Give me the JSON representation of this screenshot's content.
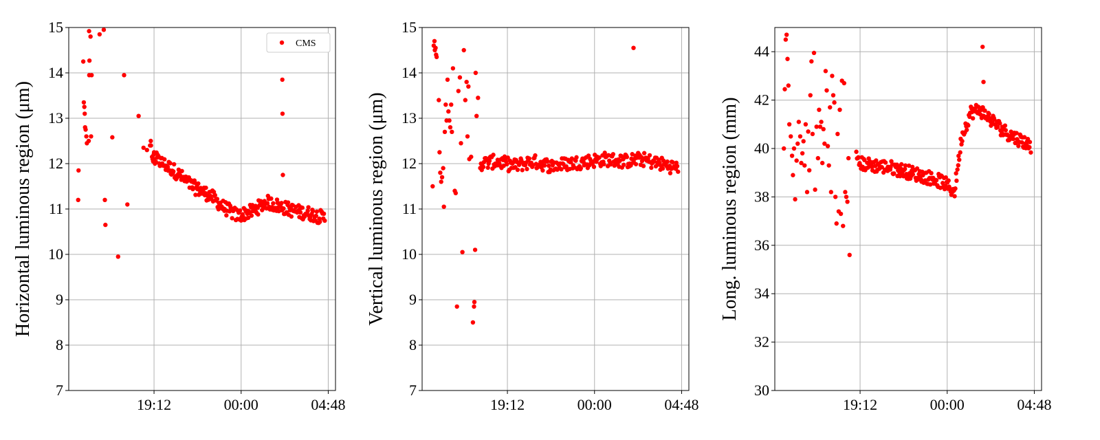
{
  "colors": {
    "points": "#ff0000",
    "grid": "#b0b0b0",
    "axes": "#000000"
  },
  "chart_data": [
    {
      "type": "scatter",
      "xlabel": "",
      "ylabel": "Horizontal luminous region (μm)",
      "ylim": [
        7,
        15
      ],
      "yticks": [
        "7",
        "8",
        "9",
        "10",
        "11",
        "12",
        "13",
        "14",
        "15"
      ],
      "xlim": [
        14.5,
        29.2
      ],
      "xtick_values": [
        19.2,
        24.0,
        28.8
      ],
      "xticks": [
        "19:12",
        "00:00",
        "04:48"
      ],
      "grid": true,
      "legend": {
        "entries": [
          "CMS"
        ],
        "placement": "top-right"
      },
      "series": [
        {
          "name": "CMS",
          "x": [
            15.02,
            15.04,
            15.3,
            15.33,
            15.36,
            15.38,
            15.4,
            15.43,
            15.47,
            15.5,
            15.6,
            15.62,
            15.63,
            15.64,
            15.7,
            15.73,
            15.76,
            16.2,
            16.43,
            16.49,
            16.52,
            16.9,
            17.22,
            17.55,
            17.73,
            18.35,
            18.62,
            18.81,
            18.98,
            19.02,
            19.03,
            19.09,
            19.12,
            19.15,
            19.18,
            19.2,
            19.22,
            19.25
          ],
          "y": [
            11.2,
            11.85,
            14.25,
            13.35,
            13.25,
            13.1,
            12.8,
            12.75,
            12.6,
            12.45,
            12.5,
            14.92,
            13.95,
            14.27,
            14.8,
            12.6,
            13.95,
            14.85,
            14.95,
            11.2,
            10.65,
            12.58,
            9.95,
            13.95,
            11.1,
            13.05,
            12.35,
            12.3,
            12.4,
            12.5,
            12.4,
            12.15,
            12.1,
            12.05,
            12.2,
            12.25,
            12.1,
            12.0
          ]
        }
      ],
      "trend": [
        {
          "x": 19.3,
          "y": 12.1
        },
        {
          "x": 20.3,
          "y": 11.85
        },
        {
          "x": 21.3,
          "y": 11.5
        },
        {
          "x": 22.3,
          "y": 11.3
        },
        {
          "x": 23.0,
          "y": 11.05
        },
        {
          "x": 23.8,
          "y": 10.85
        },
        {
          "x": 24.6,
          "y": 10.95
        },
        {
          "x": 25.4,
          "y": 11.15
        },
        {
          "x": 26.2,
          "y": 11.05
        },
        {
          "x": 27.0,
          "y": 10.95
        },
        {
          "x": 27.8,
          "y": 10.9
        },
        {
          "x": 28.6,
          "y": 10.8
        }
      ],
      "trend_extra": [
        {
          "x": 26.27,
          "y": 13.85
        },
        {
          "x": 26.28,
          "y": 13.1
        },
        {
          "x": 26.3,
          "y": 11.75
        }
      ]
    },
    {
      "type": "scatter",
      "xlabel": "",
      "ylabel": "Vertical luminous region (μm)",
      "ylim": [
        7,
        15
      ],
      "yticks": [
        "7",
        "8",
        "9",
        "10",
        "11",
        "12",
        "13",
        "14",
        "15"
      ],
      "xlim": [
        14.5,
        29.2
      ],
      "xtick_values": [
        19.2,
        24.0,
        28.8
      ],
      "xticks": [
        "19:12",
        "00:00",
        "04:48"
      ],
      "grid": true,
      "series": [
        {
          "name": "CMS",
          "x": [
            15.08,
            15.14,
            15.18,
            15.2,
            15.24,
            15.27,
            15.3,
            15.42,
            15.46,
            15.5,
            15.55,
            15.6,
            15.66,
            15.7,
            15.75,
            15.8,
            15.85,
            15.9,
            15.95,
            16.0,
            16.05,
            16.1,
            16.14,
            16.2,
            16.3,
            16.35,
            16.42,
            16.5,
            16.58,
            16.64,
            16.72,
            16.8,
            16.88,
            16.95,
            17.0,
            17.05,
            17.1,
            17.2,
            17.3,
            17.36,
            17.38,
            17.42,
            17.45,
            17.5,
            17.58
          ],
          "y": [
            11.5,
            14.6,
            14.7,
            14.5,
            14.55,
            14.4,
            14.35,
            13.4,
            12.25,
            11.8,
            11.6,
            11.7,
            11.9,
            11.05,
            12.7,
            13.3,
            12.95,
            13.85,
            13.15,
            12.95,
            12.8,
            13.3,
            12.7,
            14.1,
            11.4,
            11.35,
            8.85,
            13.6,
            13.9,
            12.45,
            10.05,
            14.5,
            13.4,
            13.8,
            12.6,
            13.7,
            12.1,
            12.15,
            8.5,
            8.85,
            8.95,
            10.1,
            14.0,
            13.05,
            13.45
          ]
        }
      ],
      "trend": [
        {
          "x": 17.7,
          "y": 12.0
        },
        {
          "x": 18.6,
          "y": 12.05
        },
        {
          "x": 19.6,
          "y": 11.95
        },
        {
          "x": 20.6,
          "y": 12.05
        },
        {
          "x": 21.6,
          "y": 11.95
        },
        {
          "x": 22.6,
          "y": 12.0
        },
        {
          "x": 23.6,
          "y": 12.05
        },
        {
          "x": 24.6,
          "y": 12.1
        },
        {
          "x": 25.6,
          "y": 12.05
        },
        {
          "x": 26.6,
          "y": 12.1
        },
        {
          "x": 27.6,
          "y": 12.0
        },
        {
          "x": 28.6,
          "y": 11.9
        }
      ],
      "trend_extra": [
        {
          "x": 26.15,
          "y": 14.55
        }
      ]
    },
    {
      "type": "scatter",
      "xlabel": "",
      "ylabel": "Long. luminous region (mm)",
      "ylim": [
        30,
        45
      ],
      "yticks": [
        "30",
        "32",
        "34",
        "36",
        "38",
        "40",
        "42",
        "44"
      ],
      "ytick_values": [
        30,
        32,
        34,
        36,
        38,
        40,
        42,
        44
      ],
      "xlim": [
        14.5,
        29.2
      ],
      "xtick_values": [
        19.2,
        24.0,
        28.8
      ],
      "xticks": [
        "19:12",
        "00:00",
        "04:48"
      ],
      "grid": true,
      "series": [
        {
          "name": "CMS",
          "x": [
            15.0,
            15.05,
            15.1,
            15.15,
            15.2,
            15.25,
            15.3,
            15.38,
            15.45,
            15.5,
            15.56,
            15.62,
            15.7,
            15.76,
            15.82,
            15.9,
            15.96,
            16.02,
            16.08,
            16.14,
            16.2,
            16.28,
            16.34,
            16.4,
            16.46,
            16.52,
            16.58,
            16.66,
            16.72,
            16.8,
            16.88,
            16.94,
            17.0,
            17.06,
            17.12,
            17.18,
            17.24,
            17.3,
            17.36,
            17.42,
            17.48,
            17.54,
            17.6,
            17.66,
            17.72,
            17.78,
            17.84,
            17.9,
            17.96,
            18.02,
            18.08,
            18.14,
            18.2,
            18.26,
            18.32,
            18.38,
            18.44,
            18.5,
            18.56,
            18.62
          ],
          "y": [
            40.0,
            42.45,
            44.5,
            44.7,
            43.7,
            42.6,
            41.0,
            40.5,
            39.7,
            38.9,
            40.0,
            37.9,
            39.5,
            40.2,
            41.1,
            40.5,
            39.4,
            39.8,
            40.3,
            39.3,
            41.0,
            38.2,
            40.7,
            39.1,
            42.2,
            43.6,
            40.6,
            43.95,
            38.3,
            40.9,
            39.6,
            41.6,
            40.9,
            41.1,
            39.4,
            40.8,
            40.2,
            43.2,
            42.4,
            40.1,
            39.3,
            41.7,
            38.2,
            43.0,
            42.2,
            41.9,
            38.0,
            36.9,
            40.6,
            37.4,
            41.6,
            37.3,
            42.8,
            36.8,
            42.7,
            38.2,
            38.0,
            37.8,
            39.6,
            35.6
          ]
        }
      ],
      "trend": [
        {
          "x": 19.0,
          "y": 39.4
        },
        {
          "x": 20.0,
          "y": 39.3
        },
        {
          "x": 21.0,
          "y": 39.2
        },
        {
          "x": 22.0,
          "y": 39.0
        },
        {
          "x": 23.0,
          "y": 38.8
        },
        {
          "x": 23.8,
          "y": 38.6
        },
        {
          "x": 24.4,
          "y": 38.2
        },
        {
          "x": 24.8,
          "y": 40.5
        },
        {
          "x": 25.3,
          "y": 41.5
        },
        {
          "x": 25.8,
          "y": 41.6
        },
        {
          "x": 26.4,
          "y": 41.2
        },
        {
          "x": 27.0,
          "y": 40.8
        },
        {
          "x": 27.6,
          "y": 40.5
        },
        {
          "x": 28.2,
          "y": 40.3
        },
        {
          "x": 28.6,
          "y": 40.1
        }
      ],
      "trend_extra": [
        {
          "x": 25.95,
          "y": 44.2
        },
        {
          "x": 26.0,
          "y": 42.75
        }
      ]
    }
  ]
}
